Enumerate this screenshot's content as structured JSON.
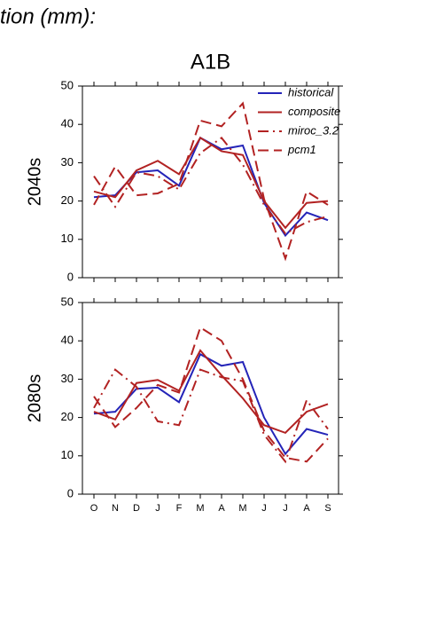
{
  "header": {
    "title": "tion (mm):"
  },
  "chart_data": [
    {
      "type": "line",
      "title": "A1B",
      "ylabel": "2040s",
      "ylim": [
        0,
        50
      ],
      "yticks": [
        0,
        10,
        20,
        30,
        40,
        50
      ],
      "legend": "upper right",
      "series": [
        {
          "name": "historical",
          "color": "#2424b8",
          "dash": "solid",
          "values": [
            21,
            21.5,
            27.5,
            28,
            24,
            36.5,
            33.5,
            34.5,
            19.5,
            11,
            17,
            15
          ]
        },
        {
          "name": "composite",
          "color": "#b22222",
          "dash": "solid",
          "values": [
            22.5,
            21,
            28,
            30.5,
            27,
            36.5,
            33,
            32,
            20,
            13,
            19.5,
            20
          ]
        },
        {
          "name": "miroc_3.2",
          "color": "#b22222",
          "dash": "dashdot",
          "values": [
            26.5,
            18.5,
            27.5,
            26.5,
            23,
            32.5,
            36.5,
            29.5,
            19,
            11.5,
            14.5,
            16
          ]
        },
        {
          "name": "pcm1",
          "color": "#b22222",
          "dash": "dash",
          "values": [
            19,
            29,
            21.5,
            22,
            24.5,
            41,
            39.5,
            45.5,
            20.5,
            5,
            22.5,
            19
          ]
        }
      ]
    },
    {
      "type": "line",
      "ylabel": "2080s",
      "categories": [
        "O",
        "N",
        "D",
        "J",
        "F",
        "M",
        "A",
        "M",
        "J",
        "J",
        "A",
        "S"
      ],
      "ylim": [
        0,
        50
      ],
      "yticks": [
        0,
        10,
        20,
        30,
        40,
        50
      ],
      "series": [
        {
          "color": "#2424b8",
          "dash": "solid",
          "values": [
            21,
            21.5,
            27.5,
            27.8,
            24,
            36.5,
            33.5,
            34.5,
            20,
            10.5,
            17,
            15.5
          ]
        },
        {
          "color": "#b22222",
          "dash": "solid",
          "values": [
            21.5,
            19.5,
            29,
            29.8,
            27,
            37.5,
            31,
            25,
            18,
            16,
            21.5,
            23.5
          ]
        },
        {
          "color": "#b22222",
          "dash": "dashdot",
          "values": [
            22.5,
            32.5,
            28,
            19,
            18,
            32.5,
            30.5,
            29.5,
            15.5,
            8.5,
            24.5,
            17
          ]
        },
        {
          "color": "#b22222",
          "dash": "dash",
          "values": [
            25.5,
            17.5,
            22.5,
            28.5,
            26.5,
            43.5,
            40,
            30,
            16.5,
            9.5,
            8.5,
            14.5
          ]
        }
      ]
    }
  ]
}
